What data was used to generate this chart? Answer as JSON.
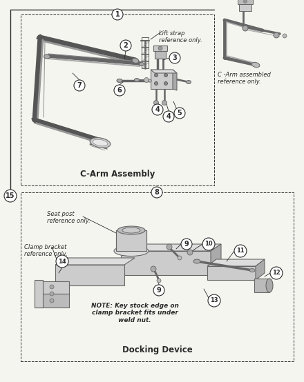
{
  "bg": "#f5f5f0",
  "lc": "#2a2a2a",
  "gray1": "#888888",
  "gray2": "#bbbbbb",
  "gray3": "#666666",
  "gray4": "#444444",
  "section1_title": "C-Arm Assembly",
  "section2_title": "Docking Device",
  "label1": "1",
  "label8": "8",
  "label15": "15",
  "lift_strap": "Lift strap\nreference only.",
  "arm_ref": "C -Arm assembled\nreference only.",
  "seat_post": "Seat post\nreference only.",
  "clamp_bracket": "Clamp bracket\nreference only.",
  "note": "NOTE: Key stock edge on\nclamp bracket fits under\nweld nut.",
  "fs_title": 8.5,
  "fs_label": 7,
  "fs_small": 6,
  "fs_note": 6
}
